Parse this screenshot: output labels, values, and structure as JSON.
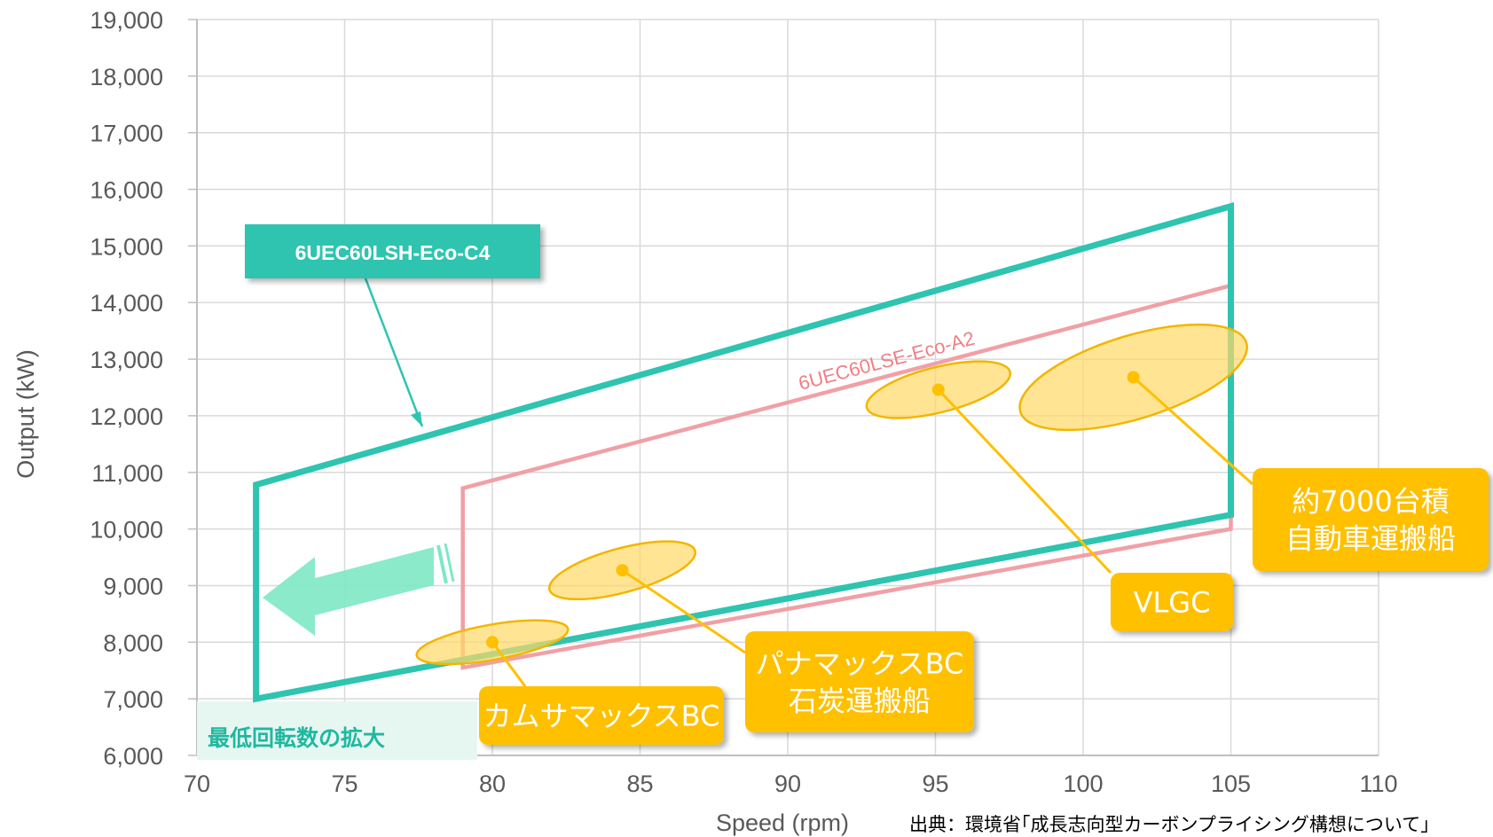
{
  "chart_data": {
    "type": "scatter",
    "xlabel": "Speed (rpm)",
    "ylabel": "Output (kW)",
    "xlim": [
      70,
      110
    ],
    "ylim": [
      6000,
      19000
    ],
    "x_ticks": [
      70,
      75,
      80,
      85,
      90,
      95,
      100,
      105,
      110
    ],
    "y_ticks": [
      6000,
      7000,
      8000,
      9000,
      10000,
      11000,
      12000,
      13000,
      14000,
      15000,
      16000,
      17000,
      18000,
      19000
    ],
    "y_tick_labels": [
      "6,000",
      "7,000",
      "8,000",
      "9,000",
      "10,000",
      "11,000",
      "12,000",
      "13,000",
      "14,000",
      "15,000",
      "16,000",
      "17,000",
      "18,000",
      "19,000"
    ],
    "grid": true,
    "envelopes": [
      {
        "name": "6UEC60LSH-Eco-C4",
        "color": "#2ec4b0",
        "points": [
          [
            72,
            7000
          ],
          [
            72,
            10780
          ],
          [
            105,
            15700
          ],
          [
            105,
            10250
          ]
        ]
      },
      {
        "name": "6UEC60LSE-Eco-A2",
        "color": "#f0a0a6",
        "points": [
          [
            79,
            7550
          ],
          [
            79,
            10720
          ],
          [
            105,
            14300
          ],
          [
            105,
            10000
          ]
        ]
      }
    ],
    "ship_regions": [
      {
        "label": "カムサマックスBC",
        "x": 80,
        "y": 8000,
        "width_rpm": 5.2,
        "height_kw": 620,
        "angle_deg": -10
      },
      {
        "label": "パナマックスBC\n石炭運搬船",
        "x": 84.4,
        "y": 9270,
        "width_rpm": 5.1,
        "height_kw": 780,
        "angle_deg": -15
      },
      {
        "label": "VLGC",
        "x": 95.1,
        "y": 12460,
        "width_rpm": 5.0,
        "height_kw": 800,
        "angle_deg": -14
      },
      {
        "label": "約7000台積\n自動車運搬船",
        "x": 101.7,
        "y": 12680,
        "width_rpm": 8.0,
        "height_kw": 1470,
        "angle_deg": -17
      }
    ]
  },
  "annotations": {
    "lsh_label": "6UEC60LSH-Eco-C4",
    "lse_label": "6UEC60LSE-Eco-A2",
    "banner": "最低回転数の拡大",
    "source": "出典：環境省｢成長志向型カーボンプライシング構想について｣",
    "callouts": [
      {
        "lines": [
          "カムサマックスBC"
        ]
      },
      {
        "lines": [
          "パナマックスBC",
          "石炭運搬船"
        ]
      },
      {
        "lines": [
          "VLGC"
        ]
      },
      {
        "lines": [
          "約7000台積",
          "自動車運搬船"
        ]
      }
    ]
  },
  "colors": {
    "lsh_envelope": "#2ec4b0",
    "lse_envelope": "#f0a0a6",
    "callout_fill": "#ffc000",
    "region_fill": "#ffd966",
    "region_stroke": "#f2b600",
    "arrow": "#7ee8c4",
    "grid": "#d9d9d9",
    "banner_bg": "#e6f7f1"
  }
}
